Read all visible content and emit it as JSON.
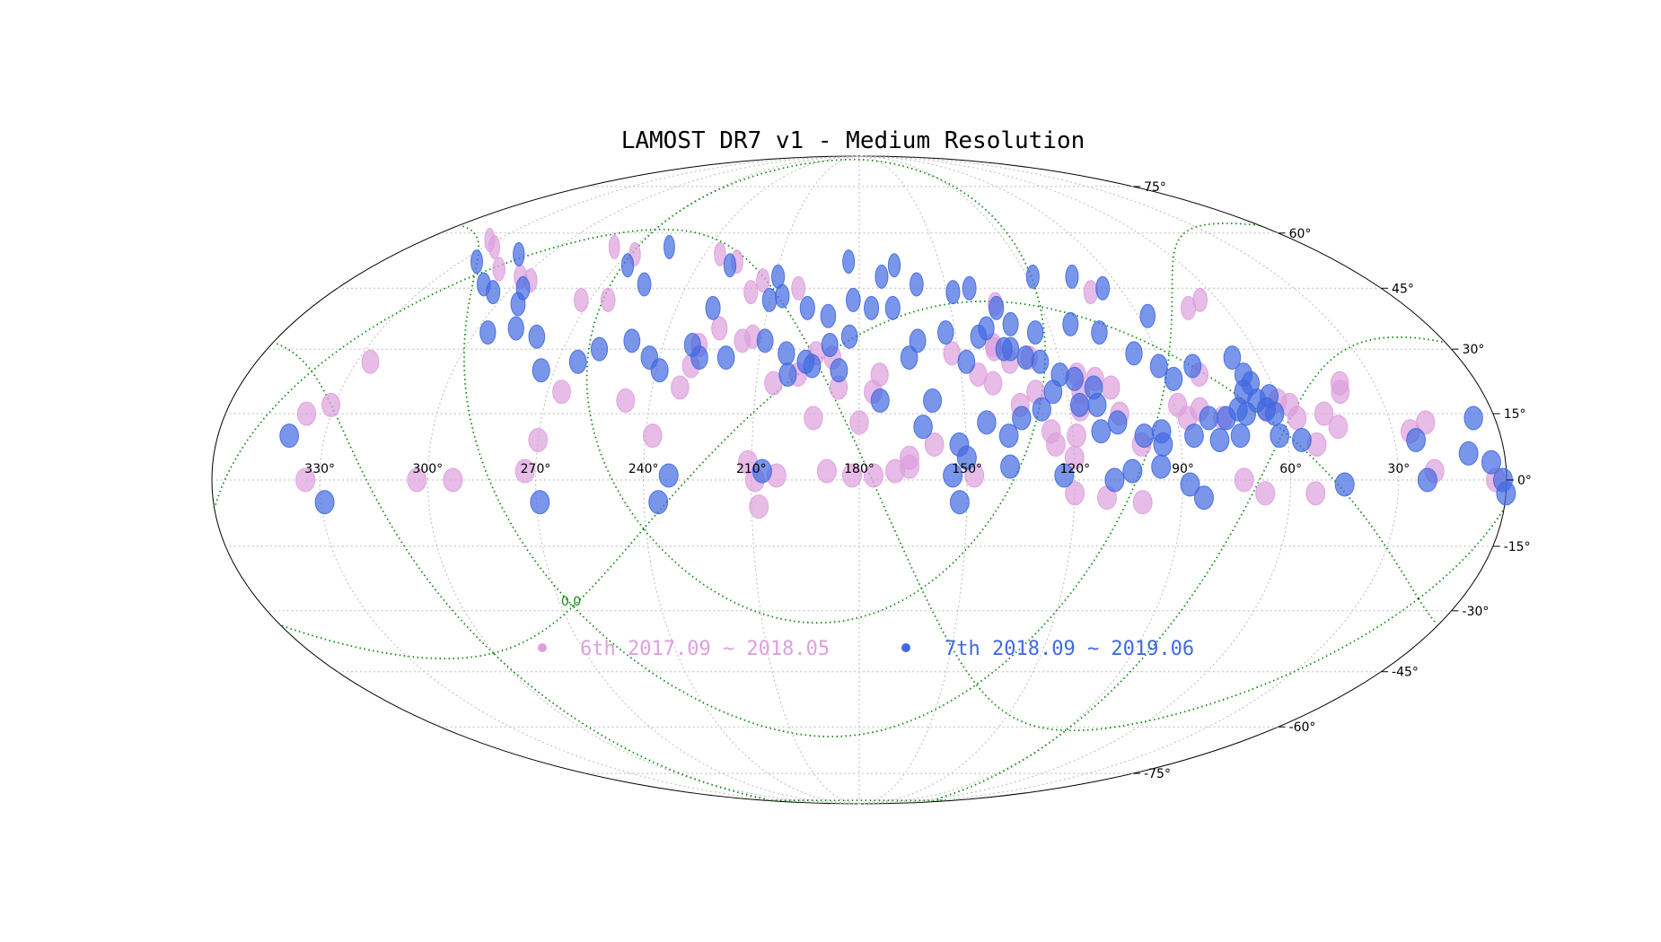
{
  "chart_data": {
    "type": "scatter",
    "title": "LAMOST DR7 v1 - Medium Resolution",
    "projection": "Mollweide",
    "x_ticks": [
      "330°",
      "300°",
      "270°",
      "240°",
      "210°",
      "180°",
      "150°",
      "120°",
      "90°",
      "60°",
      "30°"
    ],
    "y_ticks": [
      "75°",
      "60°",
      "45°",
      "30°",
      "15°",
      "0°",
      "-15°",
      "-30°",
      "-45°",
      "-60°",
      "-75°"
    ],
    "galactic_label": "0.0",
    "grid": true,
    "legend_position": "bottom-center",
    "series": [
      {
        "name": "6th 2017.09 ~ 2018.05",
        "color": "#DDA0DD",
        "points": [
          [
            333,
            58
          ],
          [
            326,
            56
          ],
          [
            312,
            50
          ],
          [
            301,
            48
          ],
          [
            296,
            47
          ],
          [
            278,
            56
          ],
          [
            267,
            54
          ],
          [
            273,
            42
          ],
          [
            264,
            42
          ],
          [
            234,
            54
          ],
          [
            226,
            52
          ],
          [
            217,
            44
          ],
          [
            214,
            47
          ],
          [
            216,
            32
          ],
          [
            213,
            33
          ],
          [
            201,
            45
          ],
          [
            193,
            29
          ],
          [
            188,
            28
          ],
          [
            205,
            22
          ],
          [
            198,
            24
          ],
          [
            193,
            14
          ],
          [
            180,
            13
          ],
          [
            186,
            21
          ],
          [
            176,
            20
          ],
          [
            174,
            24
          ],
          [
            224,
            35
          ],
          [
            230,
            26
          ],
          [
            229,
            31
          ],
          [
            232,
            21
          ],
          [
            247,
            18
          ],
          [
            238,
            10
          ],
          [
            266,
            20
          ],
          [
            270,
            9
          ],
          [
            273,
            2
          ],
          [
            293,
            0
          ],
          [
            303,
            0
          ],
          [
            334,
            0
          ],
          [
            337,
            15
          ],
          [
            331,
            17
          ],
          [
            326,
            27
          ],
          [
            211,
            4
          ],
          [
            209,
            0
          ],
          [
            208,
            -6
          ],
          [
            203,
            1
          ],
          [
            189,
            2
          ],
          [
            182,
            1
          ],
          [
            176,
            1
          ],
          [
            170,
            2
          ],
          [
            166,
            3
          ],
          [
            166,
            5
          ],
          [
            159,
            8
          ],
          [
            148,
            1
          ],
          [
            145,
            24
          ],
          [
            152,
            29
          ],
          [
            135,
            27
          ],
          [
            134,
            17
          ],
          [
            126,
            11
          ],
          [
            120,
            5
          ],
          [
            111,
            23
          ],
          [
            106,
            15
          ],
          [
            107,
            21
          ],
          [
            119,
            10
          ],
          [
            117,
            16
          ],
          [
            101,
            8
          ],
          [
            101,
            -5
          ],
          [
            83,
            16
          ],
          [
            87,
            14
          ],
          [
            89,
            17
          ],
          [
            77,
            14
          ],
          [
            80,
            24
          ],
          [
            64,
            16
          ],
          [
            60,
            18
          ],
          [
            57,
            17
          ],
          [
            56,
            14
          ],
          [
            52,
            8
          ],
          [
            48,
            15
          ],
          [
            45,
            12
          ],
          [
            40,
            22
          ],
          [
            41,
            20
          ],
          [
            25,
            11
          ],
          [
            20,
            2
          ],
          [
            3,
            0
          ],
          [
            66,
            42
          ],
          [
            72,
            40
          ],
          [
            101,
            44
          ],
          [
            135,
            41
          ],
          [
            139,
            31
          ],
          [
            139,
            30
          ],
          [
            141,
            22
          ],
          [
            129,
            20
          ],
          [
            129,
            28
          ],
          [
            116,
            24
          ],
          [
            116,
            20
          ],
          [
            125,
            8
          ],
          [
            73,
            0
          ],
          [
            67,
            -3
          ],
          [
            53,
            -3
          ],
          [
            20,
            13
          ],
          [
            120,
            -3
          ],
          [
            111,
            -4
          ]
        ]
      },
      {
        "name": "7th 2018.09 ~ 2019.06",
        "color": "#4169E1",
        "points": [
          [
            311,
            46
          ],
          [
            305,
            44
          ],
          [
            293,
            41
          ],
          [
            250,
            32
          ],
          [
            243,
            28
          ],
          [
            239,
            25
          ],
          [
            255,
            46
          ],
          [
            228,
            40
          ],
          [
            210,
            42
          ],
          [
            197,
            40
          ],
          [
            190,
            38
          ],
          [
            182,
            42
          ],
          [
            176,
            40
          ],
          [
            165,
            28
          ],
          [
            148,
            27
          ],
          [
            153,
            34
          ],
          [
            162,
            32
          ],
          [
            169,
            40
          ],
          [
            125,
            34
          ],
          [
            113,
            36
          ],
          [
            105,
            34
          ],
          [
            97,
            29
          ],
          [
            91,
            26
          ],
          [
            88,
            23
          ],
          [
            81,
            26
          ],
          [
            72,
            16
          ],
          [
            69,
            20
          ],
          [
            67,
            24
          ],
          [
            66,
            22
          ],
          [
            81,
            14
          ],
          [
            76,
            14
          ],
          [
            73,
            10
          ],
          [
            56,
            9
          ],
          [
            62,
            10
          ],
          [
            100,
            10
          ],
          [
            95,
            8
          ],
          [
            96,
            3
          ],
          [
            104,
            2
          ],
          [
            109,
            0
          ],
          [
            128,
            16
          ],
          [
            134,
            14
          ],
          [
            138,
            10
          ],
          [
            144,
            13
          ],
          [
            150,
            5
          ],
          [
            152,
            8
          ],
          [
            138,
            3
          ],
          [
            123,
            1
          ],
          [
            112,
            11
          ],
          [
            117,
            17
          ],
          [
            124,
            20
          ],
          [
            159,
            18
          ],
          [
            162,
            12
          ],
          [
            154,
            1
          ],
          [
            152,
            -5
          ],
          [
            207,
            2
          ],
          [
            233,
            1
          ],
          [
            236,
            -5
          ],
          [
            269,
            -5
          ],
          [
            340,
            10
          ],
          [
            329,
            -5
          ],
          [
            202,
            29
          ],
          [
            201,
            24
          ],
          [
            209,
            32
          ],
          [
            220,
            28
          ],
          [
            228,
            28
          ],
          [
            231,
            31
          ],
          [
            259,
            30
          ],
          [
            264,
            27
          ],
          [
            274,
            25
          ],
          [
            280,
            33
          ],
          [
            288,
            35
          ],
          [
            296,
            34
          ],
          [
            183,
            33
          ],
          [
            189,
            31
          ],
          [
            194,
            26
          ],
          [
            196,
            27
          ],
          [
            186,
            25
          ],
          [
            174,
            18
          ],
          [
            143,
            33
          ],
          [
            140,
            35
          ],
          [
            132,
            36
          ],
          [
            134,
            30
          ],
          [
            136,
            30
          ],
          [
            130,
            28
          ],
          [
            126,
            27
          ],
          [
            121,
            24
          ],
          [
            117,
            23
          ],
          [
            112,
            21
          ],
          [
            112,
            17
          ],
          [
            107,
            13
          ],
          [
            95,
            11
          ],
          [
            86,
            10
          ],
          [
            79,
            9
          ],
          [
            70,
            15
          ],
          [
            66,
            18
          ],
          [
            62,
            15
          ],
          [
            88,
            -1
          ],
          [
            84,
            -4
          ],
          [
            45,
            -1
          ],
          [
            24,
            9
          ],
          [
            22,
            0
          ],
          [
            10,
            6
          ],
          [
            4,
            4
          ],
          [
            1,
            0
          ],
          [
            0,
            -3
          ],
          [
            6,
            14
          ],
          [
            62,
            19
          ],
          [
            64,
            16
          ],
          [
            68,
            28
          ],
          [
            87,
            38
          ],
          [
            96,
            45
          ],
          [
            104,
            48
          ],
          [
            118,
            48
          ],
          [
            135,
            40
          ],
          [
            142,
            45
          ],
          [
            148,
            44
          ],
          [
            160,
            46
          ],
          [
            167,
            51
          ],
          [
            172,
            48
          ],
          [
            184,
            52
          ],
          [
            206,
            43
          ],
          [
            209,
            48
          ],
          [
            228,
            51
          ],
          [
            256,
            56
          ],
          [
            266,
            51
          ],
          [
            296,
            45
          ],
          [
            324,
            52
          ],
          [
            312,
            54
          ]
        ]
      }
    ]
  }
}
